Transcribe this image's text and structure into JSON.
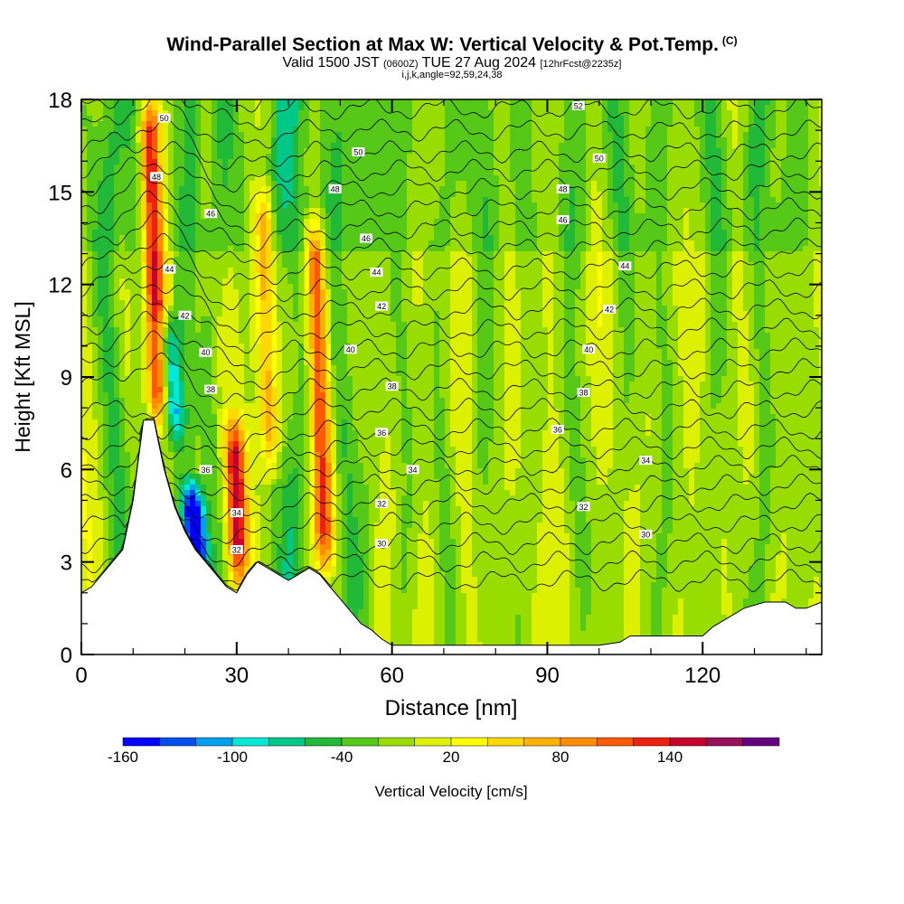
{
  "title": {
    "main": "Wind-Parallel Section at Max W: Vertical Velocity & Pot.Temp.",
    "mark": "(C)",
    "valid_prefix": "Valid 1500 JST",
    "utc": "(0600Z)",
    "valid_date": "TUE 27 Aug 2024",
    "forecast": "[12hrFcst@2235z]",
    "indices": "i,j,k,angle=92,59,24,38"
  },
  "chart_data": {
    "type": "heatmap",
    "xlabel": "Distance [nm]",
    "ylabel": "Height [Kft MSL]",
    "xlim": [
      0,
      143
    ],
    "ylim": [
      0,
      18
    ],
    "x_ticks": [
      0,
      30,
      60,
      90,
      120
    ],
    "y_ticks": [
      0,
      3,
      6,
      9,
      12,
      15,
      18
    ],
    "colorbar": {
      "label": "Vertical Velocity [cm/s]",
      "tick_values": [
        -160,
        -100,
        -40,
        20,
        80,
        140
      ],
      "levels": [
        -160,
        -140,
        -120,
        -100,
        -80,
        -60,
        -40,
        -20,
        0,
        20,
        40,
        60,
        80,
        100,
        120,
        140,
        160,
        180
      ],
      "colors": [
        "#0000ff",
        "#0050f0",
        "#00a0f0",
        "#00e8d8",
        "#00c888",
        "#22b838",
        "#55c818",
        "#99dd00",
        "#ddf000",
        "#ffff00",
        "#ffd800",
        "#ffb000",
        "#ff8c00",
        "#ff5a00",
        "#f02010",
        "#c80030",
        "#96105a",
        "#640080"
      ]
    },
    "background_color": "#ffff00",
    "updraft_bands": [
      {
        "x": 14,
        "ymin": 7.5,
        "ymax": 18,
        "peak_w": 150
      },
      {
        "x": 30,
        "ymin": 2.5,
        "ymax": 7.5,
        "peak_w": 140
      },
      {
        "x": 46,
        "ymin": 3,
        "ymax": 14,
        "peak_w": 110
      },
      {
        "x": 36,
        "ymin": 6,
        "ymax": 15,
        "peak_w": 90
      }
    ],
    "downdraft_bands": [
      {
        "x": 22,
        "ymin": 2.5,
        "ymax": 5.5,
        "peak_w": -160
      },
      {
        "x": 17,
        "ymin": 7,
        "ymax": 11,
        "peak_w": -90
      }
    ],
    "terrain": {
      "x": [
        0,
        2,
        4,
        6,
        8,
        10,
        12,
        14,
        16,
        18,
        20,
        22,
        24,
        26,
        28,
        30,
        32,
        34,
        36,
        38,
        40,
        42,
        44,
        46,
        48,
        50,
        52,
        54,
        56,
        58,
        60,
        62,
        65,
        70,
        80,
        90,
        100,
        104,
        106,
        110,
        115,
        120,
        122,
        125,
        128,
        132,
        134,
        136,
        138,
        140,
        143
      ],
      "height": [
        2.0,
        2.2,
        2.6,
        3.0,
        3.4,
        5.0,
        7.6,
        7.6,
        6.0,
        4.8,
        4.0,
        3.4,
        3.0,
        2.6,
        2.2,
        2.0,
        2.6,
        3.0,
        2.8,
        2.6,
        2.4,
        2.6,
        2.8,
        2.6,
        2.2,
        1.8,
        1.4,
        1.0,
        0.8,
        0.5,
        0.3,
        0.3,
        0.3,
        0.3,
        0.3,
        0.3,
        0.3,
        0.4,
        0.6,
        0.6,
        0.6,
        0.6,
        0.9,
        1.2,
        1.5,
        1.7,
        1.7,
        1.7,
        1.5,
        1.5,
        1.7
      ]
    },
    "theta_label_values": [
      30,
      32,
      34,
      36,
      38,
      40,
      42,
      44,
      46,
      48,
      50,
      52
    ],
    "theta_labels": [
      {
        "x": 16,
        "y": 17.4,
        "value": 50
      },
      {
        "x": 14.5,
        "y": 15.5,
        "value": 48
      },
      {
        "x": 25,
        "y": 14.3,
        "value": 46
      },
      {
        "x": 17,
        "y": 12.5,
        "value": 44
      },
      {
        "x": 20,
        "y": 11.0,
        "value": 42
      },
      {
        "x": 24,
        "y": 9.8,
        "value": 40
      },
      {
        "x": 25,
        "y": 8.6,
        "value": 38
      },
      {
        "x": 24,
        "y": 6.0,
        "value": 36
      },
      {
        "x": 30,
        "y": 4.6,
        "value": 34
      },
      {
        "x": 30,
        "y": 3.4,
        "value": 32
      },
      {
        "x": 53.5,
        "y": 16.3,
        "value": 50
      },
      {
        "x": 49,
        "y": 15.1,
        "value": 48
      },
      {
        "x": 55,
        "y": 13.5,
        "value": 46
      },
      {
        "x": 57,
        "y": 12.4,
        "value": 44
      },
      {
        "x": 58,
        "y": 11.3,
        "value": 42
      },
      {
        "x": 52,
        "y": 9.9,
        "value": 40
      },
      {
        "x": 60,
        "y": 8.7,
        "value": 38
      },
      {
        "x": 58,
        "y": 7.2,
        "value": 36
      },
      {
        "x": 64,
        "y": 6.0,
        "value": 34
      },
      {
        "x": 58,
        "y": 4.9,
        "value": 32
      },
      {
        "x": 58,
        "y": 3.6,
        "value": 30
      },
      {
        "x": 96,
        "y": 17.8,
        "value": 52
      },
      {
        "x": 100,
        "y": 16.1,
        "value": 50
      },
      {
        "x": 93,
        "y": 15.1,
        "value": 48
      },
      {
        "x": 93,
        "y": 14.1,
        "value": 46
      },
      {
        "x": 105,
        "y": 12.6,
        "value": 44
      },
      {
        "x": 102,
        "y": 11.2,
        "value": 42
      },
      {
        "x": 98,
        "y": 9.9,
        "value": 40
      },
      {
        "x": 97,
        "y": 8.5,
        "value": 38
      },
      {
        "x": 92,
        "y": 7.3,
        "value": 36
      },
      {
        "x": 109,
        "y": 6.3,
        "value": 34
      },
      {
        "x": 97,
        "y": 4.8,
        "value": 32
      },
      {
        "x": 109,
        "y": 3.9,
        "value": 30
      }
    ]
  }
}
